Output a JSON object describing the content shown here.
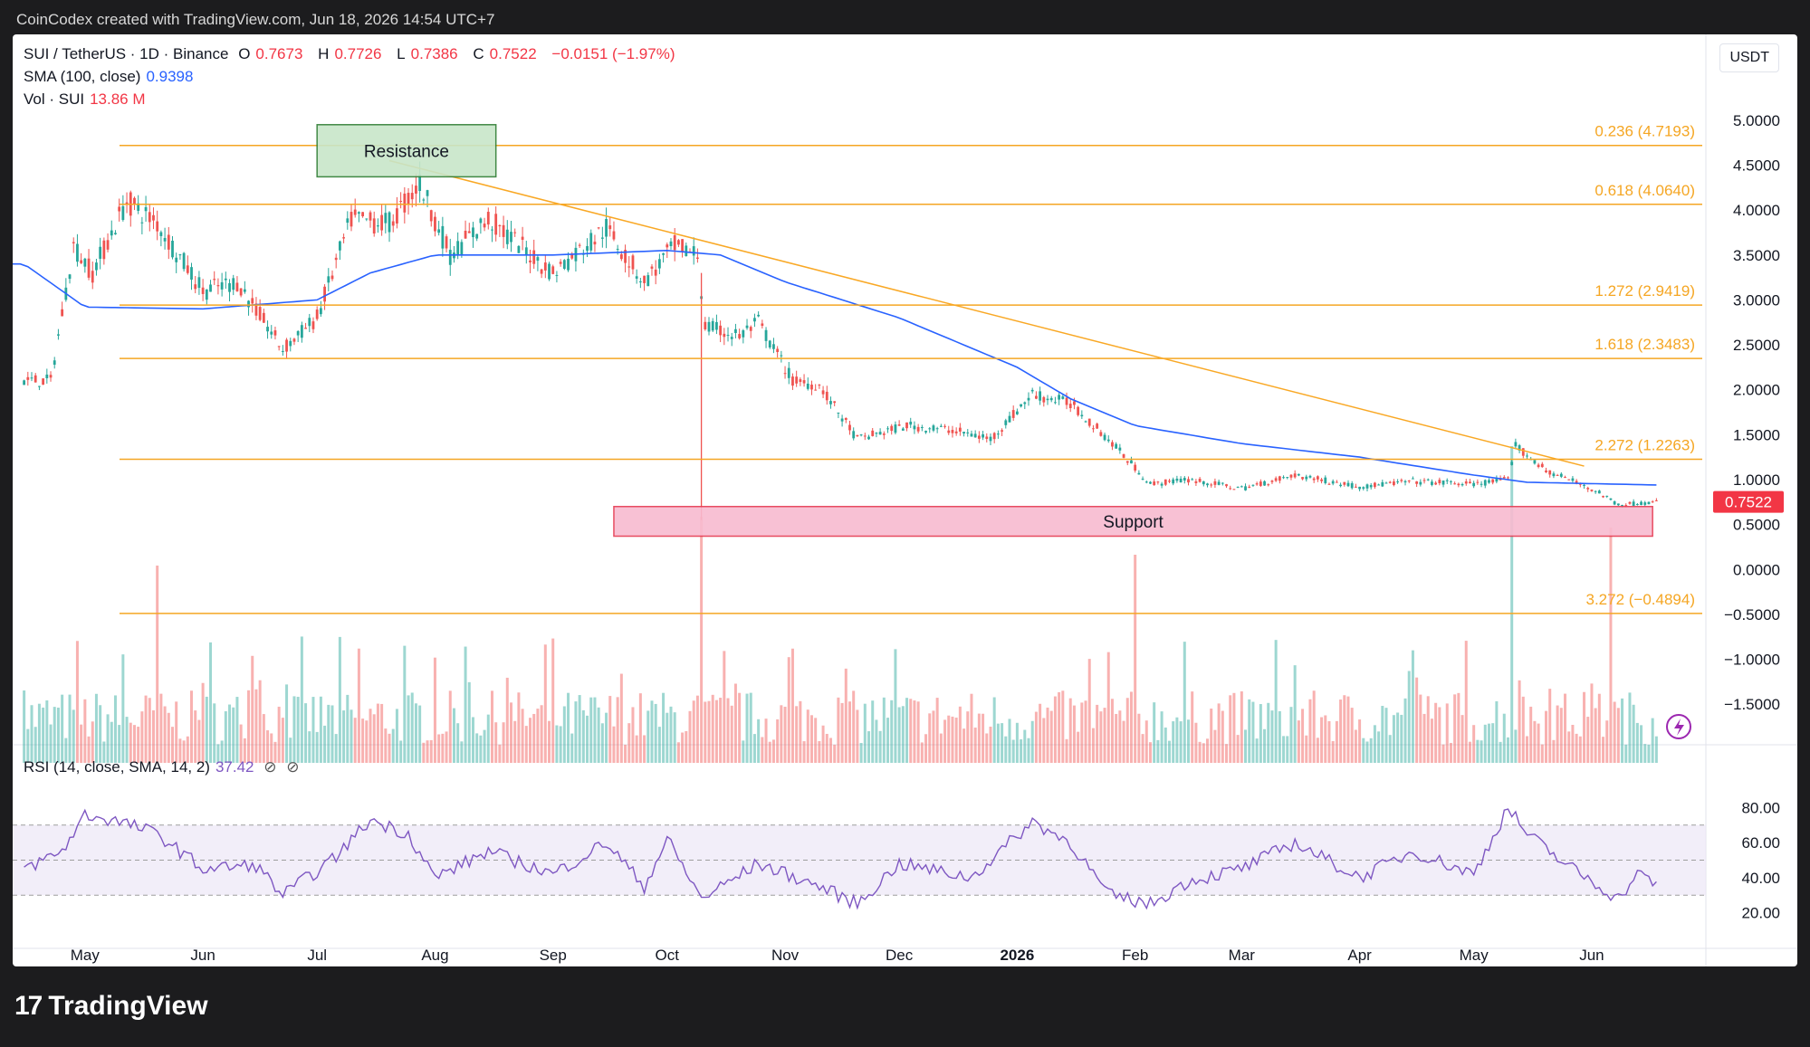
{
  "header": {
    "attribution": "CoinCodex created with TradingView.com, Jun 18, 2026 14:54 UTC+7"
  },
  "legend": {
    "symbol": "SUI / TetherUS · 1D · Binance",
    "o_label": "O",
    "o_value": "0.7673",
    "h_label": "H",
    "h_value": "0.7726",
    "l_label": "L",
    "l_value": "0.7386",
    "c_label": "C",
    "c_value": "0.7522",
    "change": "−0.0151 (−1.97%)",
    "sma_label": "SMA (100, close)",
    "sma_value": "0.9398",
    "vol_label": "Vol · SUI",
    "vol_value": "13.86 M",
    "rsi_label": "RSI (14, close, SMA, 14, 2)",
    "rsi_value": "37.42",
    "icons": [
      "hidden-icon",
      "hidden-icon"
    ]
  },
  "unit_label": "USDT",
  "footer": {
    "brand": "TradingView",
    "logo_text": "17"
  },
  "colors": {
    "up": "#26a69a",
    "down": "#ef5350",
    "sma": "#2962ff",
    "fib": "#f5a623",
    "trend": "#f9a825",
    "rsi": "#7e57c2"
  },
  "chart_data": [
    {
      "type": "candlestick",
      "title": "SUI / TetherUS · 1D · Binance",
      "ylim": [
        -1.75,
        5.25
      ],
      "y_ticks": [
        "5.0000",
        "4.5000",
        "4.0000",
        "3.5000",
        "3.0000",
        "2.5000",
        "2.0000",
        "1.5000",
        "1.0000",
        "0.5000",
        "0.0000",
        "−0.5000",
        "−1.0000",
        "−1.5000"
      ],
      "x_ticks": [
        "May",
        "Jun",
        "Jul",
        "Aug",
        "Sep",
        "Oct",
        "Nov",
        "Dec",
        "2026",
        "Feb",
        "Mar",
        "Apr",
        "May",
        "Jun"
      ],
      "last_price_label": "0.7522",
      "price_path": [
        [
          "2025-04-22",
          2.1
        ],
        [
          "2025-04-28",
          3.6
        ],
        [
          "2025-05-03",
          3.3
        ],
        [
          "2025-05-12",
          4.1
        ],
        [
          "2025-05-20",
          3.85
        ],
        [
          "2025-06-01",
          3.1
        ],
        [
          "2025-06-10",
          3.2
        ],
        [
          "2025-06-22",
          2.45
        ],
        [
          "2025-07-01",
          2.8
        ],
        [
          "2025-07-10",
          3.9
        ],
        [
          "2025-07-20",
          3.85
        ],
        [
          "2025-07-28",
          4.3
        ],
        [
          "2025-08-05",
          3.5
        ],
        [
          "2025-08-15",
          3.9
        ],
        [
          "2025-09-01",
          3.3
        ],
        [
          "2025-09-15",
          3.8
        ],
        [
          "2025-09-25",
          3.2
        ],
        [
          "2025-10-03",
          3.6
        ],
        [
          "2025-10-09",
          3.5
        ],
        [
          "2025-10-11",
          2.7
        ],
        [
          "2025-10-20",
          2.6
        ],
        [
          "2025-10-25",
          2.75
        ],
        [
          "2025-11-03",
          2.1
        ],
        [
          "2025-11-10",
          2.05
        ],
        [
          "2025-11-20",
          1.45
        ],
        [
          "2025-12-03",
          1.6
        ],
        [
          "2025-12-15",
          1.55
        ],
        [
          "2025-12-25",
          1.45
        ],
        [
          "2026-01-05",
          1.95
        ],
        [
          "2026-01-15",
          1.85
        ],
        [
          "2026-01-25",
          1.45
        ],
        [
          "2026-02-05",
          0.95
        ],
        [
          "2026-02-15",
          1.0
        ],
        [
          "2026-03-01",
          0.9
        ],
        [
          "2026-03-15",
          1.05
        ],
        [
          "2026-04-01",
          0.92
        ],
        [
          "2026-04-15",
          0.98
        ],
        [
          "2026-05-01",
          0.95
        ],
        [
          "2026-05-10",
          1.0
        ],
        [
          "2026-05-12",
          1.38
        ],
        [
          "2026-05-20",
          1.1
        ],
        [
          "2026-06-01",
          0.9
        ],
        [
          "2026-06-08",
          0.72
        ],
        [
          "2026-06-18",
          0.7522
        ]
      ],
      "sma_100_path": [
        [
          "2025-04-15",
          3.4
        ],
        [
          "2025-05-01",
          2.92
        ],
        [
          "2025-06-01",
          2.9
        ],
        [
          "2025-07-01",
          3.0
        ],
        [
          "2025-07-15",
          3.3
        ],
        [
          "2025-08-01",
          3.5
        ],
        [
          "2025-09-01",
          3.5
        ],
        [
          "2025-10-01",
          3.55
        ],
        [
          "2025-10-15",
          3.5
        ],
        [
          "2025-11-01",
          3.2
        ],
        [
          "2025-12-01",
          2.8
        ],
        [
          "2026-01-01",
          2.25
        ],
        [
          "2026-01-15",
          1.9
        ],
        [
          "2026-02-01",
          1.6
        ],
        [
          "2026-03-01",
          1.4
        ],
        [
          "2026-04-01",
          1.25
        ],
        [
          "2026-05-01",
          1.05
        ],
        [
          "2026-05-15",
          0.97
        ],
        [
          "2026-06-18",
          0.9398
        ]
      ],
      "trendline": [
        [
          "2025-07-20",
          4.55
        ],
        [
          "2026-05-30",
          1.15
        ]
      ],
      "fib_levels": [
        {
          "label": "0.236 (4.7193)",
          "value": 4.7193
        },
        {
          "label": "0.618 (4.0640)",
          "value": 4.064
        },
        {
          "label": "1.272 (2.9419)",
          "value": 2.9419
        },
        {
          "label": "1.618 (2.3483)",
          "value": 2.3483
        },
        {
          "label": "2.272 (1.2263)",
          "value": 1.2263
        },
        {
          "label": "3.272 (−0.4894)",
          "value": -0.4894
        }
      ],
      "zones": [
        {
          "label": "Resistance",
          "y1": 4.95,
          "y2": 4.37,
          "x1": "2025-07-01",
          "x2": "2025-08-17"
        },
        {
          "label": "Support",
          "y1": 0.7,
          "y2": 0.37,
          "x1": "2025-09-17",
          "x2": "2026-06-17"
        }
      ]
    },
    {
      "type": "area",
      "title": "RSI (14, close, SMA, 14, 2)",
      "ylim": [
        10,
        90
      ],
      "y_ticks": [
        "80.00",
        "60.00",
        "40.00",
        "20.00"
      ],
      "band": [
        30,
        70
      ],
      "rsi_path": [
        [
          "2025-04-15",
          45
        ],
        [
          "2025-04-25",
          55
        ],
        [
          "2025-05-01",
          76
        ],
        [
          "2025-05-10",
          72
        ],
        [
          "2025-05-20",
          65
        ],
        [
          "2025-06-01",
          45
        ],
        [
          "2025-06-15",
          47
        ],
        [
          "2025-06-22",
          30
        ],
        [
          "2025-07-05",
          50
        ],
        [
          "2025-07-15",
          73
        ],
        [
          "2025-07-25",
          65
        ],
        [
          "2025-08-01",
          40
        ],
        [
          "2025-08-15",
          55
        ],
        [
          "2025-09-01",
          42
        ],
        [
          "2025-09-15",
          60
        ],
        [
          "2025-09-25",
          35
        ],
        [
          "2025-10-01",
          62
        ],
        [
          "2025-10-10",
          28
        ],
        [
          "2025-10-25",
          48
        ],
        [
          "2025-11-10",
          35
        ],
        [
          "2025-11-20",
          25
        ],
        [
          "2025-12-01",
          48
        ],
        [
          "2025-12-20",
          40
        ],
        [
          "2026-01-05",
          72
        ],
        [
          "2026-01-15",
          60
        ],
        [
          "2026-01-25",
          30
        ],
        [
          "2026-02-05",
          25
        ],
        [
          "2026-02-15",
          38
        ],
        [
          "2026-03-01",
          45
        ],
        [
          "2026-03-15",
          60
        ],
        [
          "2026-04-01",
          40
        ],
        [
          "2026-04-15",
          55
        ],
        [
          "2026-05-01",
          42
        ],
        [
          "2026-05-10",
          80
        ],
        [
          "2026-05-15",
          65
        ],
        [
          "2026-05-25",
          48
        ],
        [
          "2026-06-08",
          28
        ],
        [
          "2026-06-13",
          42
        ],
        [
          "2026-06-18",
          37.42
        ]
      ]
    }
  ]
}
